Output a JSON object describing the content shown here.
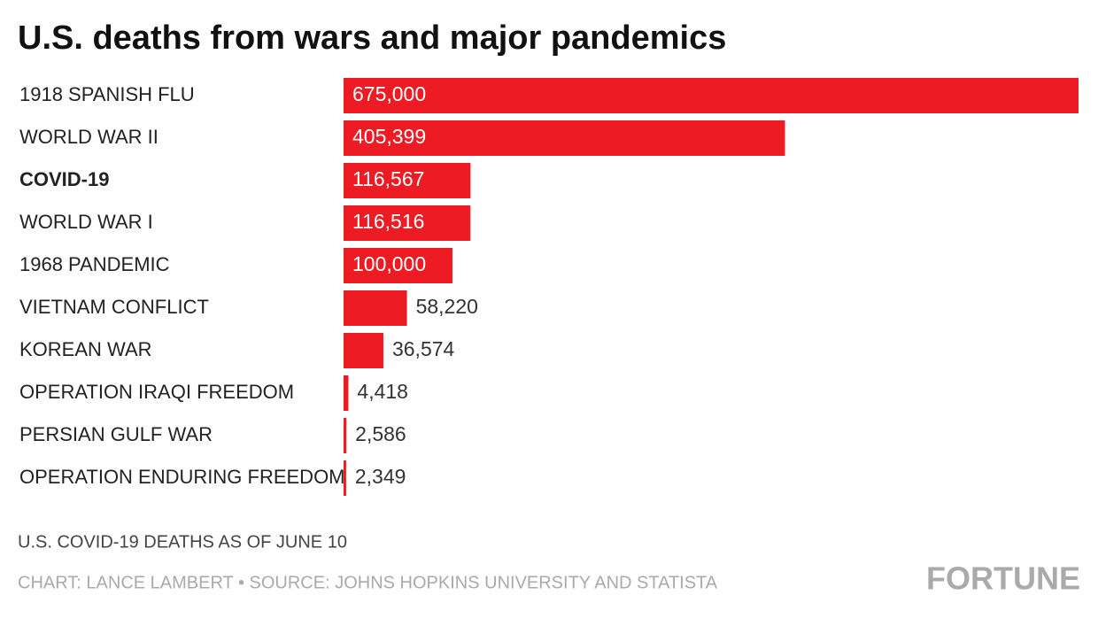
{
  "chart_data": {
    "type": "bar",
    "orientation": "horizontal",
    "title": "U.S. deaths from wars and major pandemics",
    "categories": [
      "1918 SPANISH FLU",
      "WORLD WAR II",
      "COVID-19",
      "WORLD WAR I",
      "1968 PANDEMIC",
      "VIETNAM CONFLICT",
      "KOREAN WAR",
      "OPERATION IRAQI FREEDOM",
      "PERSIAN GULF WAR",
      "OPERATION ENDURING FREEDOM"
    ],
    "values": [
      675000,
      405399,
      116567,
      116516,
      100000,
      58220,
      36574,
      4418,
      2586,
      2349
    ],
    "value_labels": [
      "675,000",
      "405,399",
      "116,567",
      "116,516",
      "100,000",
      "58,220",
      "36,574",
      "4,418",
      "2,586",
      "2,349"
    ],
    "color": "#ed1c24",
    "bold_category_indices": [
      2
    ],
    "note": "U.S. COVID-19 DEATHS AS OF JUNE 10",
    "source": "CHART: LANCE LAMBERT • SOURCE: JOHNS HOPKINS UNIVERSITY AND STATISTA",
    "brand": "FORTUNE"
  }
}
